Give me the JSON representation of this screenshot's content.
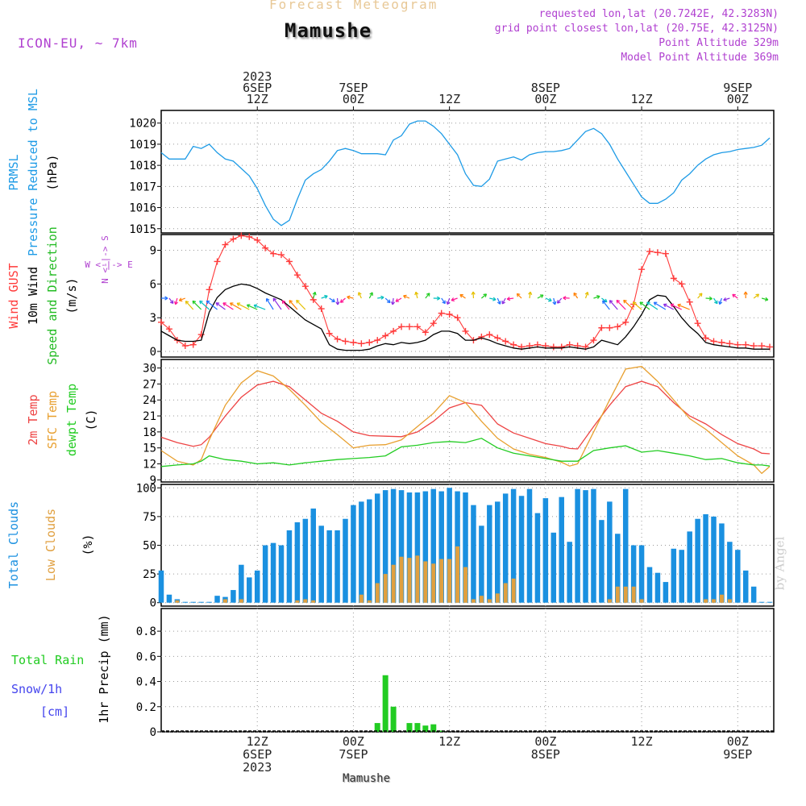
{
  "header": {
    "subtitle": "Forecast Meteogram",
    "title": "Mamushe",
    "model": "ICON-EU, ~ 7km",
    "requested": "requested lon,lat (20.7242E, 42.3283N)",
    "grid": "grid point closest lon,lat (20.75E, 42.3125N)",
    "point_alt": "Point Altitude 329m",
    "model_alt": "Model Point Altitude 369m",
    "watermark": "by Angel",
    "footer": "Mamushe"
  },
  "colors": {
    "pressure": "#1e9be6",
    "gust": "#ff3b3b",
    "wind": "#000000",
    "dir": "#22bb22",
    "temp": "#ee4444",
    "sfc": "#e8a030",
    "dewpt": "#22cc22",
    "total_clouds": "#1a90e0",
    "low_clouds": "#e0a040",
    "rain": "#22cc22",
    "snow": "#4444ee",
    "purple": "#b040d0"
  },
  "time_axis": {
    "top": [
      {
        "lines": [
          "2023",
          "6SEP",
          "12Z"
        ],
        "t": 12
      },
      {
        "lines": [
          "7SEP",
          "00Z"
        ],
        "t": 24
      },
      {
        "lines": [
          "12Z"
        ],
        "t": 36
      },
      {
        "lines": [
          "8SEP",
          "00Z"
        ],
        "t": 48
      },
      {
        "lines": [
          "12Z"
        ],
        "t": 60
      },
      {
        "lines": [
          "9SEP",
          "00Z"
        ],
        "t": 72
      }
    ],
    "bottom": [
      {
        "lines": [
          "12Z",
          "6SEP",
          "2023"
        ],
        "t": 12
      },
      {
        "lines": [
          "00Z",
          "7SEP"
        ],
        "t": 24
      },
      {
        "lines": [
          "12Z"
        ],
        "t": 36
      },
      {
        "lines": [
          "00Z",
          "8SEP"
        ],
        "t": 48
      },
      {
        "lines": [
          "12Z"
        ],
        "t": 60
      },
      {
        "lines": [
          "00Z",
          "9SEP"
        ],
        "t": 72
      }
    ]
  },
  "panel_labels": {
    "p1": [
      {
        "text": "PRMSL",
        "color": "pressure"
      },
      {
        "text": "Pressure Reduced to MSL",
        "color": "pressure"
      },
      {
        "text": "(hPa)",
        "color": "wind"
      }
    ],
    "p2": [
      {
        "text": "Wind GUST",
        "color": "gust"
      },
      {
        "text": "10m Wind",
        "color": "wind"
      },
      {
        "text": "Speed and Direction",
        "color": "dir"
      },
      {
        "text": "(m/s)",
        "color": "wind"
      }
    ],
    "p2_compass_h": "W <-|-> E",
    "p2_compass_v": "N <-|-> S",
    "p3": [
      {
        "text": "2m Temp",
        "color": "temp"
      },
      {
        "text": "SFC Temp",
        "color": "sfc"
      },
      {
        "text": "dewpt Temp",
        "color": "dewpt"
      },
      {
        "text": "(C)",
        "color": "wind"
      }
    ],
    "p4": [
      {
        "text": "Total Clouds",
        "color": "total_clouds"
      },
      {
        "text": "Low Clouds",
        "color": "low_clouds"
      },
      {
        "text": "(%)",
        "color": "wind"
      }
    ],
    "p5_left": [
      {
        "text": "Total  Rain",
        "color": "rain"
      },
      {
        "text": "Snow/1h",
        "color": "snow"
      },
      {
        "text": "[cm]",
        "color": "snow"
      }
    ],
    "p5_axis": "1hr Precip (mm)"
  },
  "chart_data": [
    {
      "type": "line",
      "title": "PRMSL Pressure Reduced to MSL",
      "ylabel": "(hPa)",
      "ylim": [
        1014.8,
        1020.6
      ],
      "yticks": [
        "1015",
        "1016",
        "1017",
        "1018",
        "1019",
        "1020"
      ],
      "x_hours_from": "6SEP 00Z",
      "x": [
        0,
        1,
        3,
        4,
        5,
        6,
        7,
        8,
        9,
        11,
        12,
        13,
        14,
        15,
        16,
        17,
        18,
        19,
        20,
        21,
        22,
        23,
        24,
        25,
        26,
        27,
        28,
        29,
        30,
        31,
        32,
        33,
        34,
        35,
        36,
        37,
        38,
        39,
        40,
        41,
        42,
        43,
        44,
        45,
        46,
        47,
        48,
        49,
        50,
        51,
        52,
        53,
        54,
        55,
        56,
        57,
        58,
        59,
        60,
        61,
        62,
        63,
        64,
        65,
        66,
        67,
        68,
        69,
        70,
        71,
        72,
        73,
        74,
        75,
        76
      ],
      "series": [
        {
          "name": "PRMSL",
          "values": [
            1018.6,
            1018.3,
            1018.3,
            1018.9,
            1018.8,
            1019.0,
            1018.6,
            1018.3,
            1018.2,
            1017.5,
            1016.9,
            1016.1,
            1015.45,
            1015.15,
            1015.4,
            1016.4,
            1017.3,
            1017.6,
            1017.8,
            1018.2,
            1018.7,
            1018.8,
            1018.7,
            1018.55,
            1018.55,
            1018.55,
            1018.5,
            1019.2,
            1019.4,
            1019.95,
            1020.1,
            1020.1,
            1019.85,
            1019.5,
            1019.0,
            1018.5,
            1017.6,
            1017.05,
            1017.0,
            1017.35,
            1018.2,
            1018.3,
            1018.4,
            1018.25,
            1018.5,
            1018.6,
            1018.65,
            1018.65,
            1018.7,
            1018.8,
            1019.2,
            1019.6,
            1019.75,
            1019.5,
            1019.0,
            1018.3,
            1017.7,
            1017.1,
            1016.5,
            1016.2,
            1016.2,
            1016.4,
            1016.7,
            1017.3,
            1017.6,
            1018.0,
            1018.3,
            1018.5,
            1018.6,
            1018.65,
            1018.75,
            1018.8,
            1018.85,
            1018.95,
            1019.3
          ]
        }
      ]
    },
    {
      "type": "line",
      "title": "Wind GUST / 10m Wind Speed and Direction",
      "ylabel": "(m/s)",
      "ylim": [
        -0.5,
        10.4
      ],
      "yticks": [
        "0",
        "3",
        "6",
        "9"
      ],
      "x_hours_from": "6SEP 00Z",
      "x": [
        0,
        1,
        2,
        3,
        4,
        5,
        6,
        7,
        8,
        9,
        10,
        11,
        12,
        13,
        14,
        15,
        16,
        17,
        18,
        19,
        20,
        21,
        22,
        23,
        24,
        25,
        26,
        27,
        28,
        29,
        30,
        31,
        32,
        33,
        34,
        35,
        36,
        37,
        38,
        39,
        40,
        41,
        42,
        43,
        44,
        45,
        46,
        47,
        48,
        49,
        50,
        51,
        52,
        53,
        54,
        55,
        56,
        57,
        58,
        59,
        60,
        61,
        62,
        63,
        64,
        65,
        66,
        67,
        68,
        69,
        70,
        71,
        72,
        73,
        74,
        75,
        76
      ],
      "series": [
        {
          "name": "Wind GUST",
          "values": [
            2.6,
            2.0,
            1.0,
            0.5,
            0.6,
            1.5,
            5.5,
            8.0,
            9.5,
            10.0,
            10.3,
            10.2,
            9.9,
            9.2,
            8.7,
            8.6,
            8.0,
            6.8,
            5.8,
            4.6,
            3.8,
            1.6,
            1.1,
            0.9,
            0.8,
            0.7,
            0.8,
            1.0,
            1.4,
            1.8,
            2.2,
            2.2,
            2.2,
            1.7,
            2.5,
            3.4,
            3.3,
            3.0,
            1.8,
            1.0,
            1.3,
            1.5,
            1.2,
            0.9,
            0.6,
            0.4,
            0.5,
            0.6,
            0.5,
            0.4,
            0.4,
            0.6,
            0.5,
            0.4,
            1.0,
            2.1,
            2.1,
            2.2,
            2.6,
            4.2,
            7.3,
            8.9,
            8.8,
            8.7,
            6.5,
            6.0,
            4.4,
            2.5,
            1.2,
            0.9,
            0.8,
            0.7,
            0.6,
            0.6,
            0.5,
            0.5,
            0.4
          ]
        },
        {
          "name": "10m Wind",
          "values": [
            1.8,
            1.4,
            1.0,
            0.9,
            0.9,
            1.0,
            3.5,
            4.8,
            5.5,
            5.8,
            6.0,
            5.9,
            5.6,
            5.2,
            4.9,
            4.6,
            4.0,
            3.4,
            2.8,
            2.4,
            2.0,
            0.6,
            0.2,
            0.1,
            0.1,
            0.1,
            0.2,
            0.5,
            0.7,
            0.6,
            0.8,
            0.7,
            0.8,
            1.0,
            1.5,
            1.8,
            1.8,
            1.6,
            1.0,
            1.0,
            1.2,
            1.0,
            0.7,
            0.5,
            0.3,
            0.2,
            0.3,
            0.4,
            0.3,
            0.3,
            0.3,
            0.4,
            0.3,
            0.2,
            0.4,
            1.0,
            0.8,
            0.6,
            1.3,
            2.2,
            3.3,
            4.6,
            5.0,
            4.9,
            4.0,
            3.0,
            2.2,
            1.6,
            0.8,
            0.6,
            0.5,
            0.4,
            0.3,
            0.3,
            0.2,
            0.2,
            0.2
          ]
        }
      ]
    },
    {
      "type": "line",
      "title": "2m Temp / SFC Temp / dewpt Temp",
      "ylabel": "(C)",
      "ylim": [
        8.6,
        31.6
      ],
      "yticks": [
        "9",
        "12",
        "15",
        "18",
        "21",
        "24",
        "27",
        "30"
      ],
      "x_hours_from": "6SEP 00Z",
      "x": [
        0,
        2,
        4,
        5,
        6,
        8,
        10,
        12,
        14,
        16,
        18,
        20,
        22,
        24,
        26,
        28,
        30,
        32,
        34,
        36,
        38,
        40,
        42,
        44,
        46,
        48,
        50,
        51,
        52,
        54,
        56,
        58,
        60,
        62,
        64,
        66,
        68,
        70,
        72,
        74,
        75,
        76
      ],
      "series": [
        {
          "name": "2m Temp",
          "values": [
            17.0,
            16.0,
            15.3,
            15.6,
            17.0,
            21.0,
            24.5,
            26.8,
            27.5,
            26.5,
            24.0,
            21.5,
            20.0,
            18.0,
            17.3,
            17.2,
            17.1,
            18.0,
            20.0,
            22.5,
            23.5,
            23.0,
            19.5,
            17.8,
            16.8,
            15.8,
            15.3,
            14.9,
            14.8,
            19.0,
            23.0,
            26.5,
            27.5,
            26.5,
            23.5,
            21.0,
            19.5,
            17.5,
            15.8,
            14.8,
            14.0,
            13.9
          ]
        },
        {
          "name": "SFC Temp",
          "values": [
            14.5,
            12.5,
            11.8,
            12.8,
            16.5,
            23.0,
            27.2,
            29.5,
            28.5,
            26.0,
            23.0,
            19.8,
            17.5,
            15.0,
            15.5,
            15.6,
            16.5,
            19.0,
            21.5,
            24.8,
            23.5,
            20.0,
            16.8,
            14.8,
            13.8,
            13.2,
            12.3,
            11.6,
            12.0,
            18.0,
            24.0,
            29.8,
            30.3,
            27.5,
            24.0,
            20.5,
            18.5,
            16.0,
            13.5,
            11.8,
            10.2,
            11.5
          ]
        },
        {
          "name": "dewpt Temp",
          "values": [
            11.5,
            11.8,
            12.0,
            12.5,
            13.5,
            12.8,
            12.5,
            12.0,
            12.2,
            11.8,
            12.2,
            12.5,
            12.8,
            13.0,
            13.2,
            13.5,
            15.2,
            15.5,
            16.0,
            16.2,
            16.0,
            16.8,
            15.0,
            14.0,
            13.5,
            13.0,
            12.5,
            12.5,
            12.5,
            14.5,
            15.0,
            15.4,
            14.2,
            14.5,
            14.0,
            13.5,
            12.8,
            13.0,
            12.2,
            11.8,
            11.8,
            11.6
          ]
        }
      ]
    },
    {
      "type": "bar",
      "title": "Total Clouds / Low Clouds",
      "ylabel": "(%)",
      "ylim": [
        -3,
        103
      ],
      "yticks": [
        "0",
        "25",
        "50",
        "75",
        "100"
      ],
      "x_hours_from": "6SEP 00Z",
      "x": [
        0,
        1,
        2,
        3,
        4,
        5,
        6,
        7,
        8,
        9,
        10,
        11,
        12,
        13,
        14,
        15,
        16,
        17,
        18,
        19,
        20,
        21,
        22,
        23,
        24,
        25,
        26,
        27,
        28,
        29,
        30,
        31,
        32,
        33,
        34,
        35,
        36,
        37,
        38,
        39,
        40,
        41,
        42,
        43,
        44,
        45,
        46,
        47,
        48,
        49,
        50,
        51,
        52,
        53,
        54,
        55,
        56,
        57,
        58,
        59,
        60,
        61,
        62,
        63,
        64,
        65,
        66,
        67,
        68,
        69,
        70,
        71,
        72,
        73,
        74,
        75,
        76
      ],
      "series": [
        {
          "name": "Total Clouds",
          "values": [
            28,
            7,
            3,
            0,
            0,
            0,
            0,
            6,
            5,
            11,
            33,
            22,
            28,
            50,
            52,
            50,
            63,
            70,
            73,
            82,
            67,
            63,
            63,
            73,
            85,
            88,
            90,
            95,
            98,
            99,
            98,
            96,
            96,
            97,
            99,
            97,
            100,
            97,
            96,
            85,
            67,
            85,
            88,
            95,
            99,
            93,
            99,
            78,
            91,
            61,
            92,
            53,
            99,
            98,
            99,
            72,
            88,
            60,
            99,
            50,
            50,
            31,
            26,
            18,
            47,
            46,
            62,
            73,
            77,
            75,
            69,
            53,
            46,
            28,
            14,
            0,
            0
          ]
        },
        {
          "name": "Low Clouds",
          "values": [
            0,
            0,
            2,
            0,
            0,
            0,
            0,
            0,
            3,
            0,
            3,
            0,
            0,
            0,
            0,
            0,
            0,
            2,
            3,
            2,
            0,
            0,
            0,
            0,
            0,
            7,
            2,
            17,
            25,
            33,
            40,
            39,
            41,
            36,
            34,
            38,
            38,
            49,
            31,
            3,
            6,
            3,
            8,
            17,
            21,
            0,
            0,
            0,
            0,
            0,
            0,
            0,
            0,
            0,
            0,
            0,
            3,
            14,
            14,
            14,
            3,
            0,
            0,
            0,
            0,
            0,
            0,
            0,
            3,
            3,
            7,
            3,
            0,
            0,
            0,
            0,
            0
          ]
        }
      ]
    },
    {
      "type": "bar",
      "title": "1hr Precip",
      "ylabel": "1hr Precip (mm)",
      "ylim": [
        0,
        0.98
      ],
      "yticks": [
        "0",
        "0.2",
        "0.4",
        "0.6",
        "0.8"
      ],
      "x_hours_from": "6SEP 00Z",
      "x": [
        27,
        28,
        29,
        31,
        32,
        33,
        34,
        35
      ],
      "series": [
        {
          "name": "Total Rain",
          "values": [
            0.07,
            0.45,
            0.2,
            0.07,
            0.07,
            0.05,
            0.06,
            0.01
          ]
        }
      ]
    }
  ]
}
